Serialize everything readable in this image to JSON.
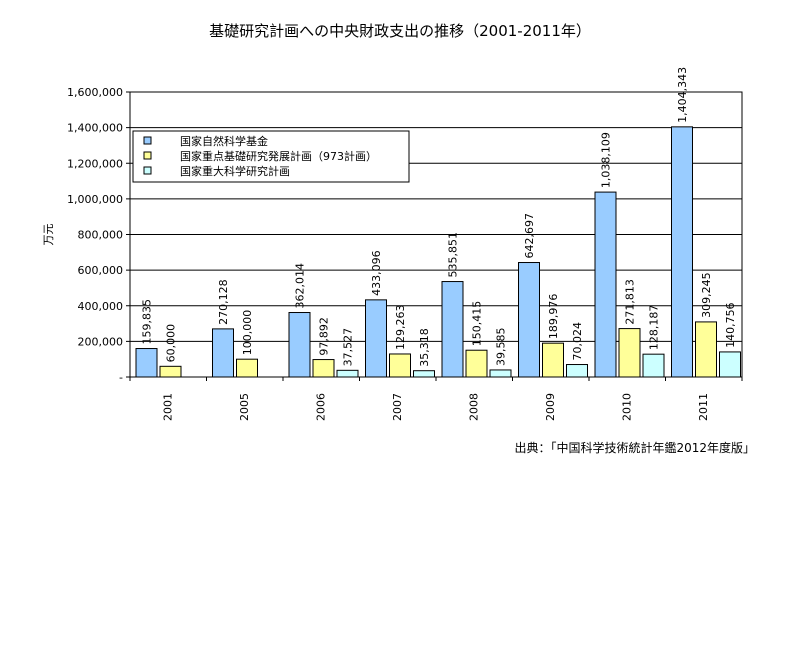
{
  "chart_data": {
    "type": "bar",
    "title": "基礎研究計画への中央財政支出の推移（2001-2011年）",
    "ylabel": "万元",
    "xlabel": "",
    "ylim": [
      0,
      1600000
    ],
    "yticks": [
      0,
      200000,
      400000,
      600000,
      800000,
      1000000,
      1200000,
      1400000,
      1600000
    ],
    "ytick_labels": [
      "-",
      "200,000",
      "400,000",
      "600,000",
      "800,000",
      "1,000,000",
      "1,200,000",
      "1,400,000",
      "1,600,000"
    ],
    "categories": [
      "2001",
      "2005",
      "2006",
      "2007",
      "2008",
      "2009",
      "2010",
      "2011"
    ],
    "grid": true,
    "legend_position": "top-left",
    "series": [
      {
        "name": "国家自然科学基金",
        "color": "#99ccff",
        "values": [
          159835,
          270128,
          362014,
          433096,
          535851,
          642697,
          1038109,
          1404343
        ],
        "labels": [
          "159,835",
          "270,128",
          "362,014",
          "433,096",
          "535,851",
          "642,697",
          "1,038,109",
          "1,404,343"
        ]
      },
      {
        "name": "国家重点基礎研究発展計画（973計画）",
        "color": "#ffff99",
        "values": [
          60000,
          100000,
          97892,
          129263,
          150415,
          189976,
          271813,
          309245
        ],
        "labels": [
          "60,000",
          "100,000",
          "97,892",
          "129,263",
          "150,415",
          "189,976",
          "271,813",
          "309,245"
        ]
      },
      {
        "name": "国家重大科学研究計画",
        "color": "#ccffff",
        "values": [
          null,
          null,
          37527,
          35318,
          39585,
          70024,
          128187,
          140756
        ],
        "labels": [
          null,
          null,
          "37,527",
          "35,318",
          "39,585",
          "70,024",
          "128,187",
          "140,756"
        ]
      }
    ],
    "source_note": "出典：「中国科学技術統計年鑑2012年度版」"
  }
}
